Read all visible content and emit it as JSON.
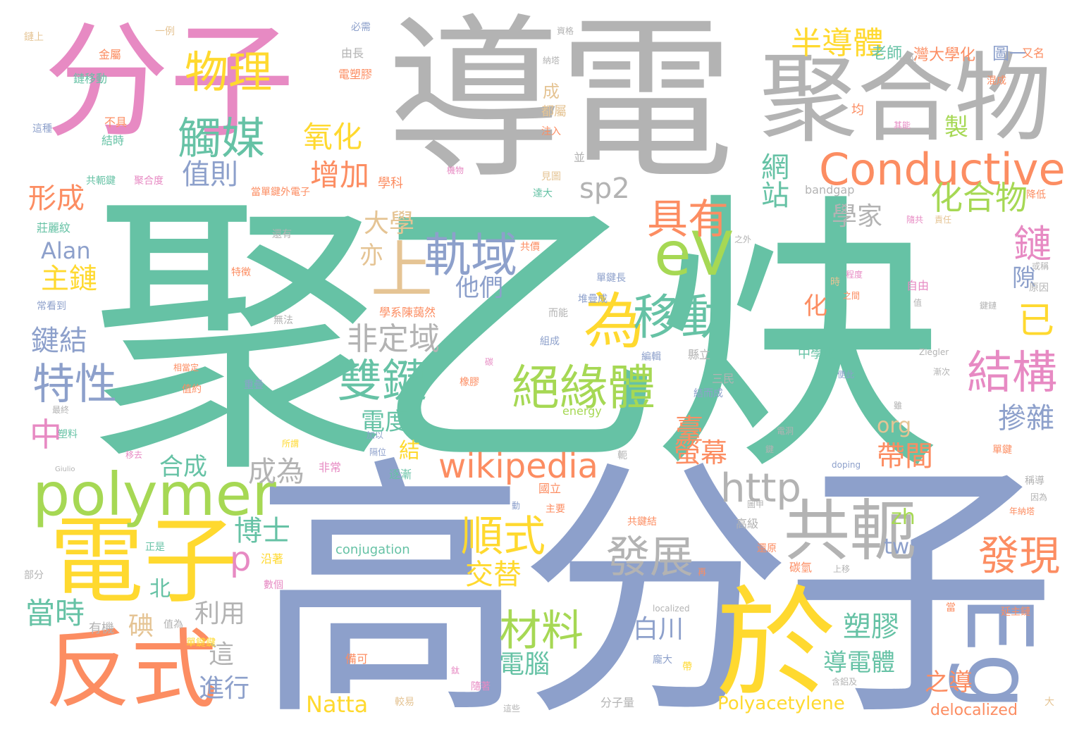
{
  "words": {
    "w1": "聚乙炔",
    "w2": "高分子",
    "w3": "導電",
    "w4": "分子",
    "w5": "聚合物",
    "w6": "電子",
    "w7": "反式",
    "w8": "於",
    "w9": "Eg",
    "w10": "共軛",
    "w11": "Conductive",
    "w12": "polymer",
    "w13": "eV",
    "w14": "為",
    "w15": "上",
    "w16": "移動",
    "w17": "絕緣體",
    "w18": "雙鍵",
    "w19": "軌域",
    "w20": "具有",
    "w21": "結構",
    "w22": "特性",
    "w23": "觸媒",
    "w24": "物理",
    "w25": "wikipedia",
    "w26": "http",
    "w27": "材料",
    "w28": "順式",
    "w29": "發現",
    "w30": "發展",
    "w31": "化合物",
    "w32": "半導體",
    "w33": "非定域",
    "w34": "鍵結",
    "w35": "形成",
    "w36": "主鏈",
    "w37": "氧化",
    "w38": "增加",
    "w39": "值則",
    "w40": "sp2",
    "w41": "網站",
    "w42": "學家",
    "w43": "鏈",
    "w44": "已",
    "w45": "p",
    "w46": "中",
    "w47": "Alan",
    "w48": "大學",
    "w49": "亦",
    "w50": "他們",
    "w51": "化",
    "w52": "隙",
    "w53": "電度",
    "w54": "結",
    "w55": "臺",
    "w56": "螢幕",
    "w57": "成為",
    "w58": "合成",
    "w59": "博士",
    "w60": "org",
    "w61": "zh",
    "w62": "tw",
    "w63": "帶間",
    "w64": "摻雜",
    "w65": "交替",
    "w66": "當時",
    "w67": "北",
    "w68": "碘",
    "w69": "利用",
    "w70": "這",
    "w71": "進行",
    "w72": "白川",
    "w73": "電腦",
    "w74": "塑膠",
    "w75": "導電體",
    "w76": "之導",
    "w77": "Natta",
    "w78": "Polyacetylene",
    "w79": "delocalized",
    "w80": "conjugation",
    "w81": "老師",
    "w82": "灣大學化",
    "w83": "圖一",
    "w84": "製",
    "w85": "成",
    "w86": "都屬",
    "w87": "學科",
    "w88": "bandgap",
    "w89": "鏈上",
    "w90": "一例",
    "w91": "必需",
    "w92": "資格",
    "w93": "金屬",
    "w94": "由長",
    "w95": "納塔",
    "w96": "域化",
    "w97": "又名",
    "w98": "混成",
    "w99": "鏈移動",
    "w100": "電塑膠",
    "w101": "這種",
    "w102": "不具",
    "w103": "結時",
    "w104": "注入",
    "w105": "均",
    "w106": "其能",
    "w107": "並",
    "w108": "機物",
    "w109": "見圖",
    "w110": "達大",
    "w111": "共軛鍵",
    "w112": "聚合度",
    "w113": "當單鍵外電子",
    "w114": "降低",
    "w115": "莊麗紋",
    "w116": "還有",
    "w117": "之外",
    "w118": "隨共",
    "w119": "責任",
    "w120": "共價",
    "w121": "特徵",
    "w122": "單鍵長",
    "w123": "或稱",
    "w124": "原因",
    "w125": "常看到",
    "w126": "堆疊成",
    "w127": "時",
    "w128": "程度",
    "w129": "自由",
    "w130": "學系陳藹然",
    "w131": "而能",
    "w132": "之間",
    "w133": "值",
    "w134": "鍵鏈",
    "w135": "無法",
    "w136": "組成",
    "w137": "中學化",
    "w138": "縣立",
    "w139": "編輯",
    "w140": "Ziegler",
    "w141": "碳",
    "w142": "漸次",
    "w143": "相當定",
    "w144": "三民",
    "w145": "便此",
    "w146": "橡膠",
    "w147": "值約",
    "w148": "重疊",
    "w149": "結而成",
    "w150": "energy",
    "w151": "雖",
    "w152": "最終",
    "w153": "塑料",
    "w154": "所謂",
    "w155": "加以",
    "w156": "電洞",
    "w157": "移去",
    "w158": "鍵",
    "w159": "單鍵",
    "w160": "Giulio",
    "w161": "非常",
    "w162": "隔位",
    "w163": "軛",
    "w164": "逐漸",
    "w165": "doping",
    "w166": "稱導",
    "w167": "因為",
    "w168": "國立",
    "w169": "主要",
    "w170": "動",
    "w171": "圖甲",
    "w172": "年納塔",
    "w173": "正是",
    "w174": "共鍵結",
    "w175": "高級",
    "w176": "沿著",
    "w177": "還原",
    "w178": "部分",
    "w179": "數個",
    "w180": "再",
    "w181": "碳氫",
    "w182": "上移",
    "w183": "有機",
    "w184": "值為",
    "w185": "localized",
    "w186": "當",
    "w187": "延主鏈",
    "w188": "單鍵鍵",
    "w189": "備可",
    "w190": "鈦",
    "w191": "隨著",
    "w192": "龐大",
    "w193": "帶",
    "w194": "含鋁及",
    "w195": "較易",
    "w196": "分子量",
    "w197": "這些",
    "w198": "大"
  },
  "colors": {
    "teal": "#66c2a5",
    "orange": "#fc8d62",
    "blue": "#8da0cb",
    "pink": "#e78ac3",
    "green": "#a6d854",
    "yellow": "#ffd92f",
    "tan": "#e5c494",
    "grey": "#b3b3b3"
  }
}
